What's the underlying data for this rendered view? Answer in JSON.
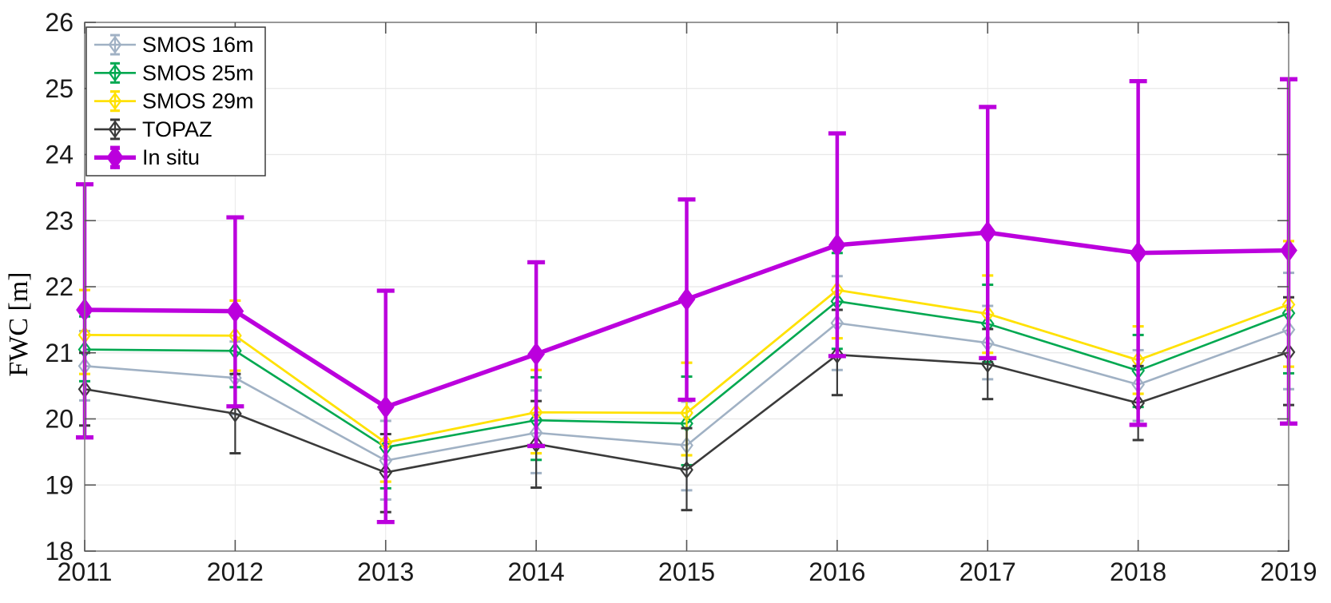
{
  "figure": {
    "ylabel": "FWC [m]",
    "xlabel": ""
  },
  "style": {
    "background": "#ffffff",
    "spine_color": "#808080",
    "tick_color": "#555555",
    "grid_color": "#e8e8e8",
    "tick_label_color": "#1a1a1a",
    "legend_border_color": "#3c3c3c",
    "legend_background": "#ffffff"
  },
  "chart_data": {
    "type": "line",
    "title": "",
    "xlabel": "",
    "ylabel": "FWC [m]",
    "grid": true,
    "legend_position": "top-left",
    "xlim": [
      2011,
      2019
    ],
    "ylim": [
      18,
      26
    ],
    "xticks": [
      2011,
      2012,
      2013,
      2014,
      2015,
      2016,
      2017,
      2018,
      2019
    ],
    "yticks": [
      18,
      19,
      20,
      21,
      22,
      23,
      24,
      25,
      26
    ],
    "x": [
      2011,
      2012,
      2013,
      2014,
      2015,
      2016,
      2017,
      2018,
      2019
    ],
    "series": [
      {
        "name": "SMOS 16m",
        "color": "#a0b1c4",
        "marker": "open-diamond",
        "line_width": 2.6,
        "err_width": 2.2,
        "cap_half": 7,
        "marker_rx": 7,
        "marker_ry": 9.5,
        "values": [
          20.8,
          20.62,
          19.37,
          19.79,
          19.6,
          21.45,
          21.15,
          20.52,
          21.35
        ],
        "err_low": [
          20.28,
          20.07,
          18.78,
          19.18,
          18.92,
          20.74,
          20.6,
          19.97,
          20.45
        ],
        "err_high": [
          21.33,
          21.17,
          19.97,
          20.43,
          20.26,
          22.16,
          21.71,
          21.04,
          22.21
        ]
      },
      {
        "name": "SMOS 25m",
        "color": "#00a850",
        "marker": "open-diamond",
        "line_width": 2.6,
        "err_width": 2.2,
        "cap_half": 7,
        "marker_rx": 7,
        "marker_ry": 9.5,
        "values": [
          21.05,
          21.03,
          19.57,
          19.98,
          19.93,
          21.78,
          21.44,
          20.73,
          21.6
        ],
        "err_low": [
          20.57,
          20.48,
          18.95,
          19.38,
          19.3,
          21.06,
          20.86,
          20.18,
          20.69
        ],
        "err_high": [
          21.55,
          21.58,
          20.17,
          20.63,
          20.64,
          22.51,
          22.03,
          21.27,
          22.5
        ]
      },
      {
        "name": "SMOS 29m",
        "color": "#ffe100",
        "marker": "open-diamond",
        "line_width": 2.8,
        "err_width": 2.4,
        "cap_half": 7,
        "marker_rx": 7,
        "marker_ry": 9.5,
        "values": [
          21.27,
          21.26,
          19.64,
          20.1,
          20.09,
          21.95,
          21.59,
          20.89,
          21.73
        ],
        "err_low": [
          20.68,
          20.73,
          19.05,
          19.48,
          19.45,
          21.22,
          21.0,
          20.38,
          20.79
        ],
        "err_high": [
          21.95,
          21.79,
          20.24,
          20.74,
          20.85,
          22.65,
          22.17,
          21.4,
          22.69
        ]
      },
      {
        "name": "TOPAZ",
        "color": "#3a3a3a",
        "marker": "open-diamond",
        "line_width": 2.6,
        "err_width": 2.2,
        "cap_half": 7,
        "marker_rx": 7,
        "marker_ry": 9.5,
        "values": [
          20.45,
          20.08,
          19.19,
          19.62,
          19.23,
          20.97,
          20.83,
          20.24,
          21.01
        ],
        "err_low": [
          19.9,
          19.48,
          18.59,
          18.96,
          18.62,
          20.36,
          20.3,
          19.68,
          20.21
        ],
        "err_high": [
          21.0,
          20.68,
          19.77,
          20.27,
          19.86,
          21.65,
          21.36,
          20.8,
          21.84
        ]
      },
      {
        "name": "In situ",
        "color": "#bb00dd",
        "marker": "filled-diamond",
        "line_width": 5.5,
        "err_width": 4.5,
        "cap_half": 11,
        "marker_rx": 9.5,
        "marker_ry": 13,
        "values": [
          21.65,
          21.63,
          20.18,
          20.98,
          21.81,
          22.63,
          22.82,
          22.51,
          22.55
        ],
        "err_low": [
          19.72,
          20.19,
          18.44,
          19.59,
          20.29,
          20.95,
          20.92,
          19.91,
          19.93
        ],
        "err_high": [
          23.55,
          23.05,
          21.94,
          22.37,
          23.32,
          24.32,
          24.72,
          25.11,
          25.14
        ]
      }
    ]
  }
}
